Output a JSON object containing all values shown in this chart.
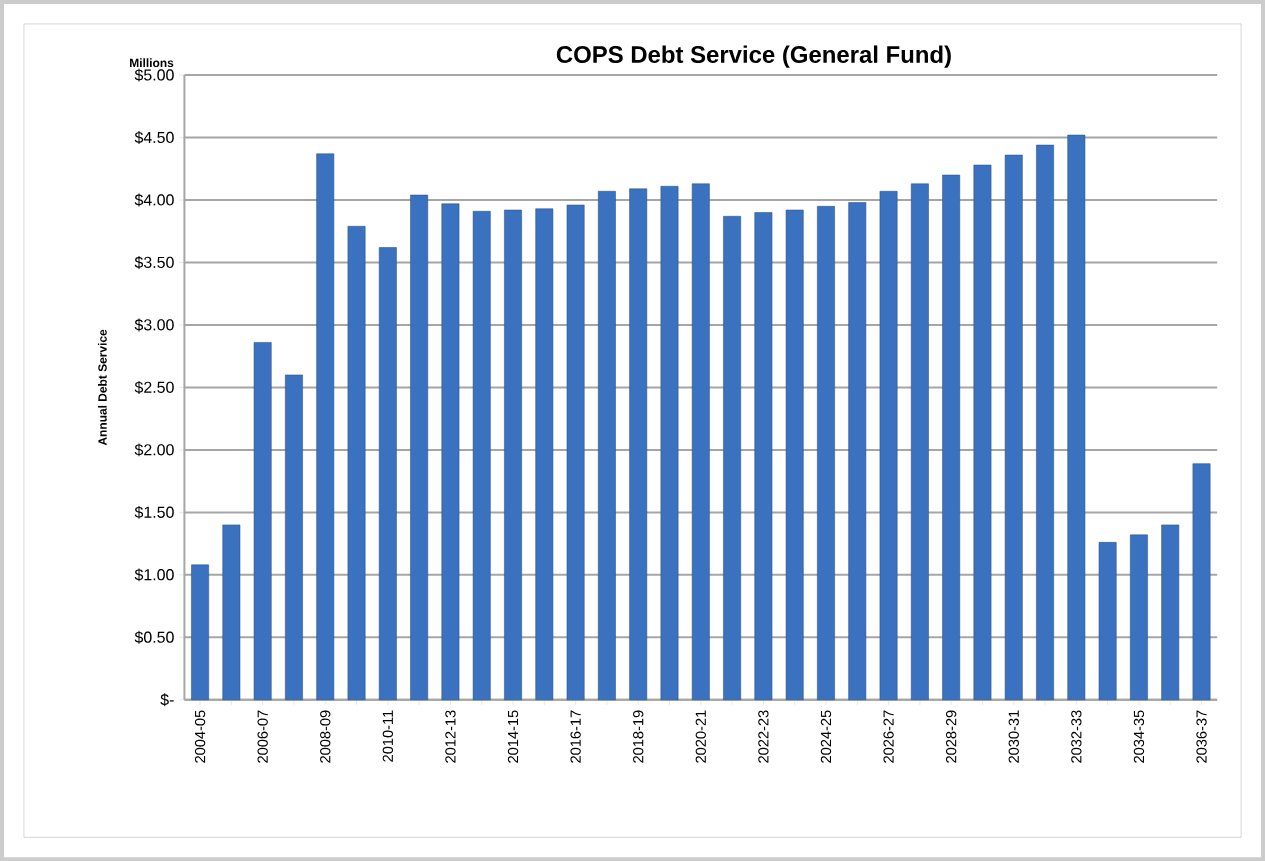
{
  "chart_data": {
    "type": "bar",
    "title": "COPS Debt Service (General Fund)",
    "ylabel": "Annual Debt Service",
    "annotations": [
      "Millions"
    ],
    "categories": [
      "2004-05",
      null,
      "2006-07",
      null,
      "2008-09",
      null,
      "2010-11",
      null,
      "2012-13",
      null,
      "2014-15",
      null,
      "2016-17",
      null,
      "2018-19",
      null,
      "2020-21",
      null,
      "2022-23",
      null,
      "2024-25",
      null,
      "2026-27",
      null,
      "2028-29",
      null,
      "2030-31",
      null,
      "2032-33",
      null,
      "2034-35",
      null,
      "2036-37"
    ],
    "values": [
      1.08,
      1.4,
      2.86,
      2.6,
      4.37,
      3.79,
      3.62,
      4.04,
      3.97,
      3.91,
      3.92,
      3.93,
      3.96,
      4.07,
      4.09,
      4.11,
      4.13,
      3.87,
      3.9,
      3.92,
      3.95,
      3.98,
      4.07,
      4.13,
      4.2,
      4.28,
      4.36,
      4.44,
      4.52,
      1.26,
      1.32,
      1.4,
      1.89
    ],
    "color": "#3a72c0",
    "ylim": [
      0,
      5
    ],
    "yticks": [
      {
        "value": 0,
        "label": "$-"
      },
      {
        "value": 0.5,
        "label": "$0.50"
      },
      {
        "value": 1,
        "label": "$1.00"
      },
      {
        "value": 1.5,
        "label": "$1.50"
      },
      {
        "value": 2,
        "label": "$2.00"
      },
      {
        "value": 2.5,
        "label": "$2.50"
      },
      {
        "value": 3,
        "label": "$3.00"
      },
      {
        "value": 3.5,
        "label": "$3.50"
      },
      {
        "value": 4,
        "label": "$4.00"
      },
      {
        "value": 4.5,
        "label": "$4.50"
      },
      {
        "value": 5,
        "label": "$5.00"
      }
    ],
    "grid": "y"
  }
}
